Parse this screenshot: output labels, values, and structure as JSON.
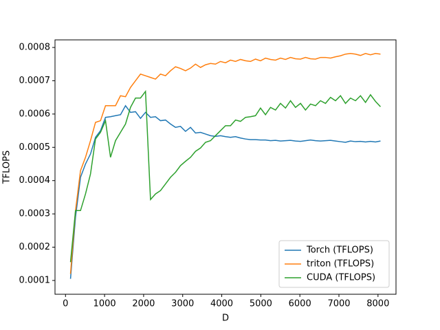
{
  "chart_data": {
    "type": "line",
    "x_label": "D",
    "y_label": "TFLOPS",
    "x": [
      128,
      256,
      384,
      512,
      640,
      768,
      896,
      1024,
      1152,
      1280,
      1408,
      1536,
      1664,
      1792,
      1920,
      2048,
      2176,
      2304,
      2432,
      2560,
      2688,
      2816,
      2944,
      3072,
      3200,
      3328,
      3456,
      3584,
      3712,
      3840,
      3968,
      4096,
      4224,
      4352,
      4480,
      4608,
      4736,
      4864,
      4992,
      5120,
      5248,
      5376,
      5504,
      5632,
      5760,
      5888,
      6016,
      6144,
      6272,
      6400,
      6528,
      6656,
      6784,
      6912,
      7040,
      7168,
      7296,
      7424,
      7552,
      7680,
      7808,
      7936,
      8064
    ],
    "series": [
      {
        "name": "Torch (TFLOPS)",
        "color": "#1f77b4",
        "values": [
          0.000105,
          0.00029,
          0.00041,
          0.00045,
          0.00048,
          0.00053,
          0.00055,
          0.00059,
          0.000592,
          0.000595,
          0.000598,
          0.000625,
          0.000605,
          0.000607,
          0.000587,
          0.000605,
          0.00059,
          0.000592,
          0.00058,
          0.000582,
          0.00057,
          0.00056,
          0.000563,
          0.000548,
          0.00056,
          0.000543,
          0.000545,
          0.00054,
          0.000535,
          0.000533,
          0.000535,
          0.000532,
          0.00053,
          0.000532,
          0.000528,
          0.000525,
          0.000523,
          0.000523,
          0.000522,
          0.000522,
          0.00052,
          0.000521,
          0.000519,
          0.00052,
          0.000521,
          0.000519,
          0.000518,
          0.00052,
          0.000522,
          0.00052,
          0.000519,
          0.00052,
          0.000521,
          0.000519,
          0.000517,
          0.000515,
          0.000519,
          0.000517,
          0.000518,
          0.000516,
          0.000518,
          0.000516,
          0.000519
        ]
      },
      {
        "name": "triton (TFLOPS)",
        "color": "#ff7f0e",
        "values": [
          0.00012,
          0.00031,
          0.00043,
          0.00047,
          0.00052,
          0.000575,
          0.00058,
          0.000625,
          0.000625,
          0.000625,
          0.000655,
          0.000652,
          0.00068,
          0.0007,
          0.00072,
          0.000715,
          0.00071,
          0.000705,
          0.00072,
          0.000715,
          0.00073,
          0.000742,
          0.000737,
          0.00073,
          0.000738,
          0.00075,
          0.00074,
          0.000748,
          0.000752,
          0.00075,
          0.000758,
          0.000754,
          0.000762,
          0.000758,
          0.000764,
          0.00076,
          0.000758,
          0.000765,
          0.00076,
          0.000768,
          0.000764,
          0.000762,
          0.000768,
          0.000764,
          0.00077,
          0.000766,
          0.000765,
          0.00077,
          0.000766,
          0.000765,
          0.00077,
          0.00077,
          0.000768,
          0.000772,
          0.000775,
          0.00078,
          0.000782,
          0.00078,
          0.000776,
          0.000782,
          0.000778,
          0.000782,
          0.00078
        ]
      },
      {
        "name": "CUDA (TFLOPS)",
        "color": "#2ca02c",
        "values": [
          0.000155,
          0.00031,
          0.00031,
          0.00036,
          0.00042,
          0.000525,
          0.000545,
          0.00058,
          0.00047,
          0.00052,
          0.000545,
          0.00057,
          0.00062,
          0.000648,
          0.000648,
          0.000668,
          0.000343,
          0.00036,
          0.00037,
          0.00039,
          0.00041,
          0.000425,
          0.000445,
          0.000458,
          0.00047,
          0.000488,
          0.000498,
          0.000515,
          0.00052,
          0.000535,
          0.00055,
          0.000565,
          0.000565,
          0.000582,
          0.000578,
          0.00059,
          0.000592,
          0.000595,
          0.000618,
          0.000598,
          0.00062,
          0.000612,
          0.000632,
          0.000618,
          0.00064,
          0.00062,
          0.000632,
          0.000612,
          0.00063,
          0.000625,
          0.00064,
          0.000632,
          0.00065,
          0.00064,
          0.000655,
          0.000632,
          0.000648,
          0.00064,
          0.000655,
          0.000635,
          0.000658,
          0.000638,
          0.000622
        ]
      }
    ],
    "xlim": [
      -269,
      8461
    ],
    "ylim": [
      5.86e-05,
      0.0008228
    ],
    "xticks": [
      0,
      1000,
      2000,
      3000,
      4000,
      5000,
      6000,
      7000,
      8000
    ],
    "yticks": [
      0.0001,
      0.0002,
      0.0003,
      0.0004,
      0.0005,
      0.0006,
      0.0007,
      0.0008
    ],
    "grid": false,
    "legend": "lower right"
  }
}
